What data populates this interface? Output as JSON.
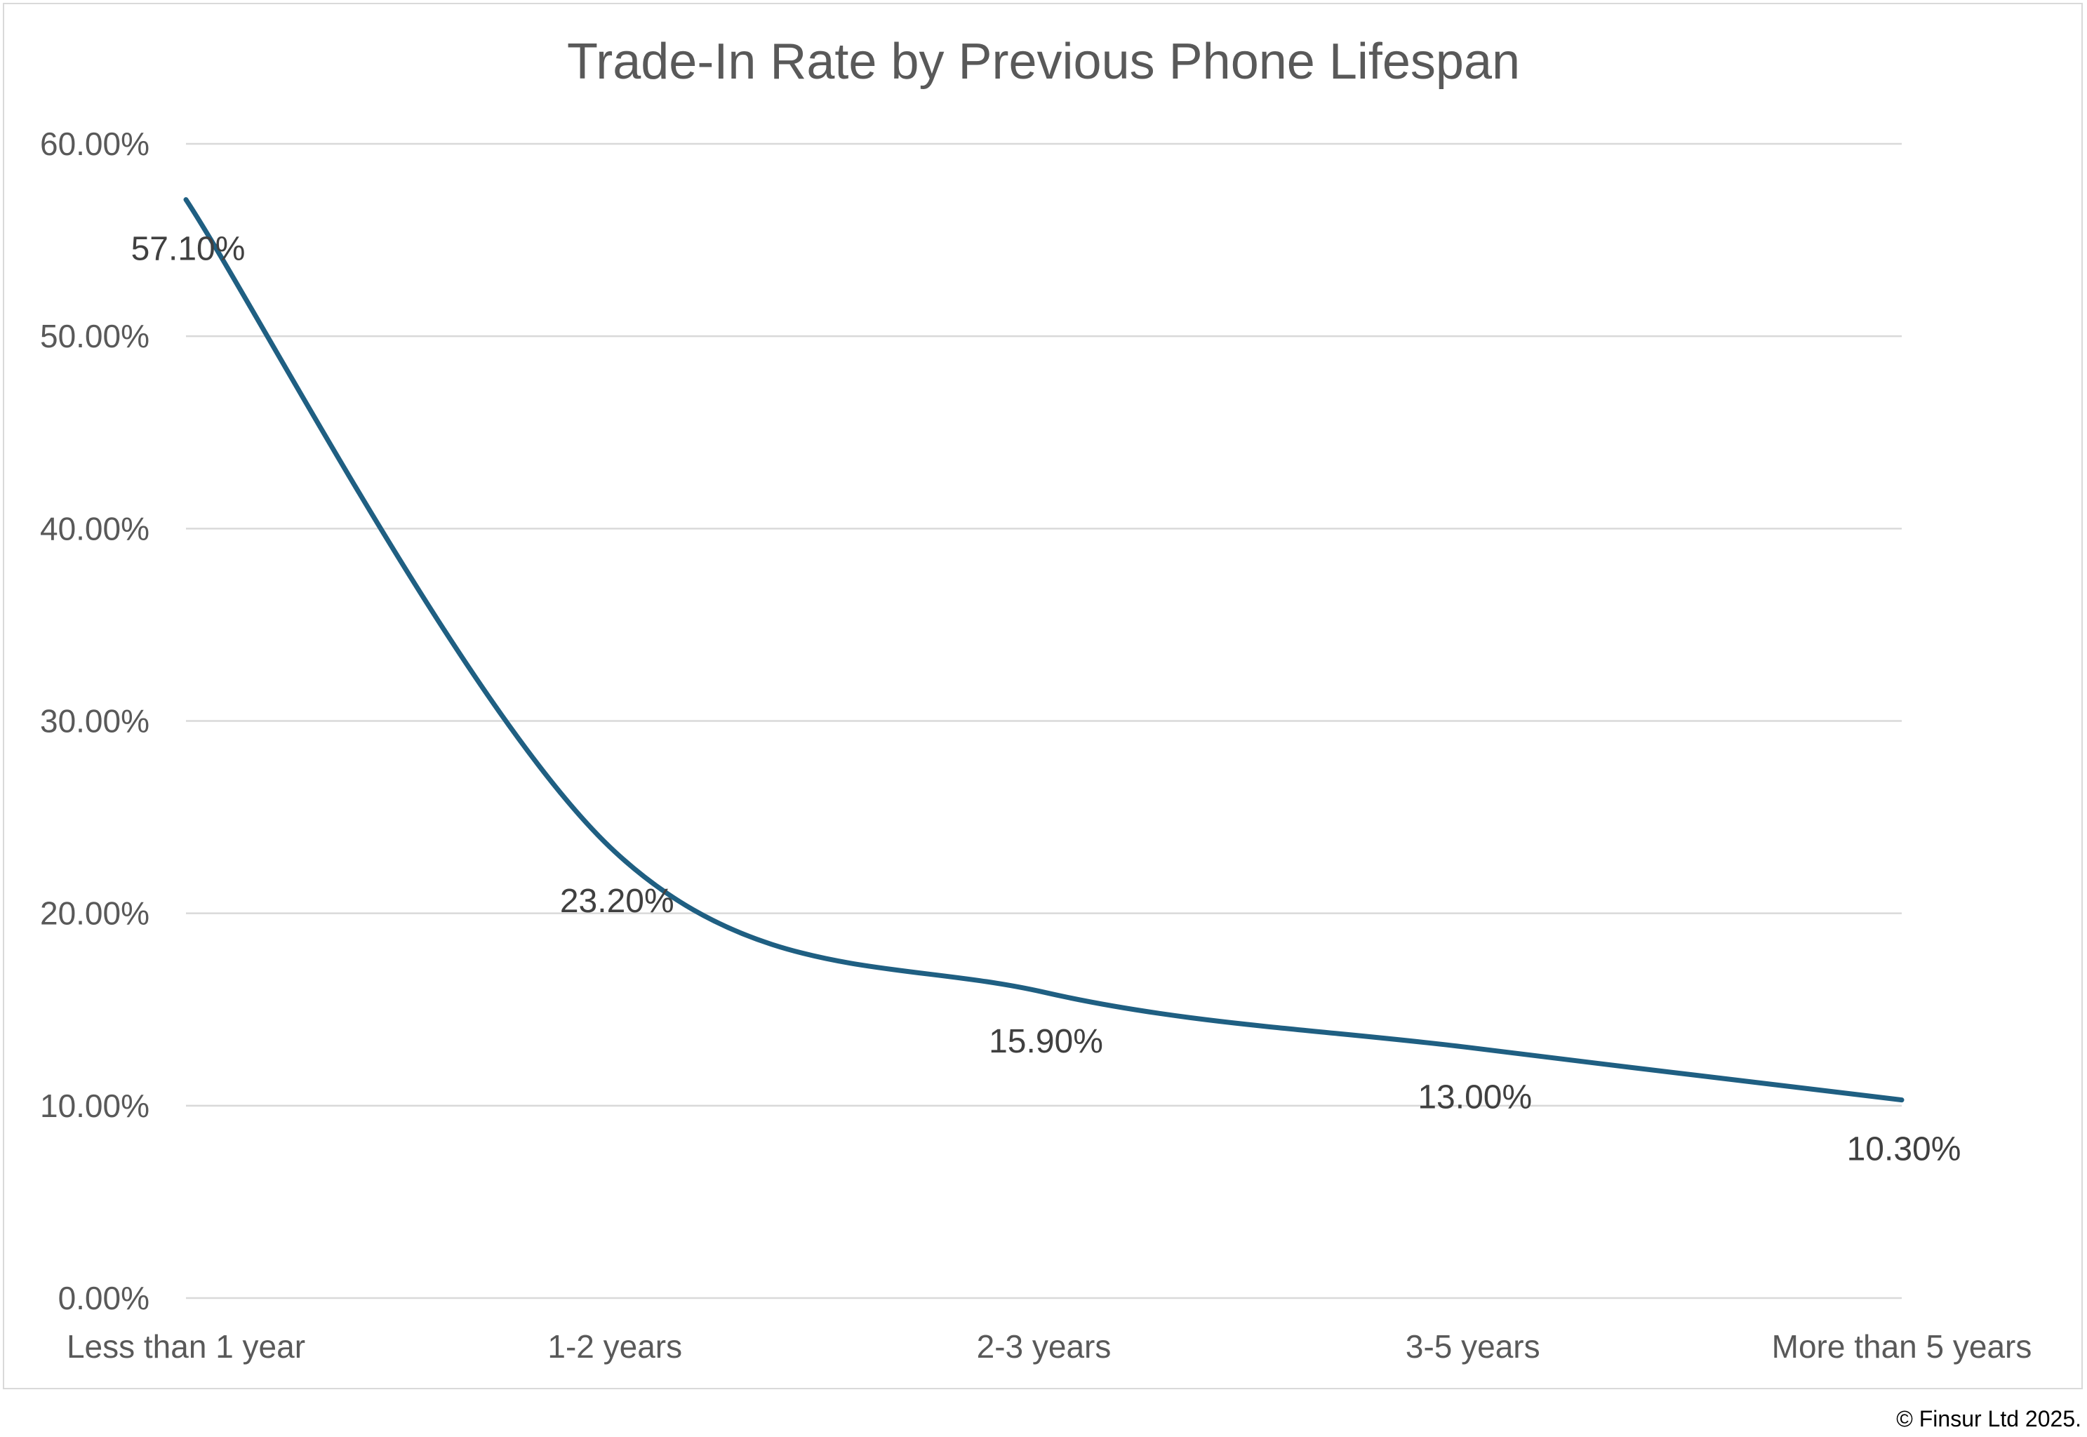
{
  "chart_data": {
    "type": "line",
    "title": "Trade-In Rate by Previous Phone Lifespan",
    "xlabel": "",
    "ylabel": "",
    "categories": [
      "Less than 1 year",
      "1-2 years",
      "2-3 years",
      "3-5 years",
      "More than 5 years"
    ],
    "series": [
      {
        "values": [
          57.1,
          23.2,
          15.9,
          13.0,
          10.3
        ],
        "data_labels": [
          "57.10%",
          "23.20%",
          "15.90%",
          "13.00%",
          "10.30%"
        ],
        "color": "#1f5f82",
        "smooth": true
      }
    ],
    "ylim": [
      0,
      60
    ],
    "yticks": [
      0,
      10,
      20,
      30,
      40,
      50,
      60
    ],
    "ytick_labels": [
      "0.00%",
      "10.00%",
      "20.00%",
      "30.00%",
      "40.00%",
      "50.00%",
      "60.00%"
    ],
    "grid": true,
    "legend": "none",
    "gridline_color": "#d9d9d9"
  },
  "footer": {
    "copyright": "© Finsur Ltd 2025."
  }
}
